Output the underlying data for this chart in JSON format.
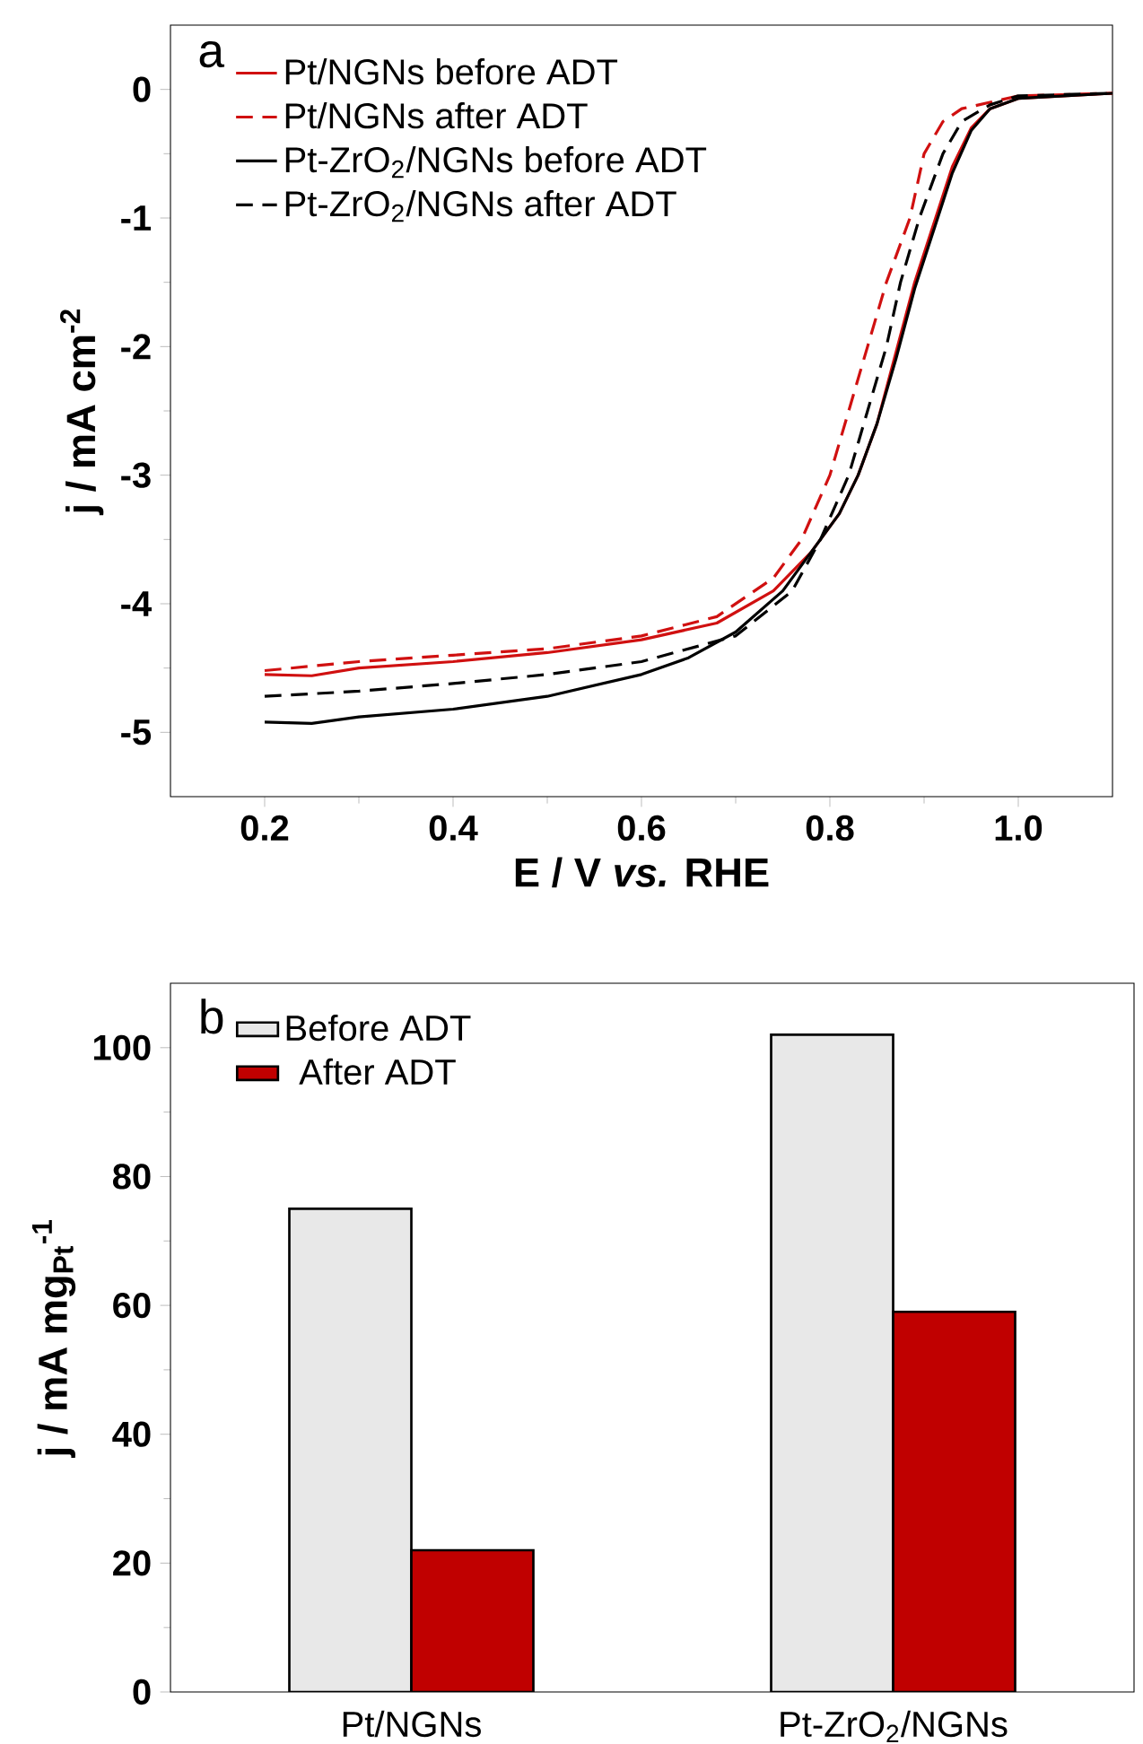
{
  "chart_data": [
    {
      "type": "line",
      "annotations": [
        "a"
      ],
      "xlabel": "E / V *vs.* RHE",
      "ylabel": "j / mA cm$^{-2}$",
      "xlim": [
        0.1,
        1.1
      ],
      "ylim": [
        -5.5,
        0.5
      ],
      "xticks": [
        0.2,
        0.4,
        0.6,
        0.8,
        {
          "value": 1.0,
          "label": "1.0"
        }
      ],
      "yticks": [
        -5,
        -4,
        -3,
        -2,
        -1,
        0
      ],
      "legend": "top left",
      "grid": false,
      "series": [
        {
          "name": "Pt/NGNs before ADT",
          "color": "#d01010",
          "line_style": "solid",
          "x": [
            0.2,
            0.25,
            0.3,
            0.4,
            0.5,
            0.6,
            0.68,
            0.74,
            0.78,
            0.81,
            0.83,
            0.85,
            0.87,
            0.89,
            0.91,
            0.93,
            0.95,
            0.97,
            1.0,
            1.1
          ],
          "values": [
            -4.55,
            -4.56,
            -4.5,
            -4.45,
            -4.38,
            -4.28,
            -4.15,
            -3.9,
            -3.6,
            -3.3,
            -3.0,
            -2.6,
            -2.05,
            -1.5,
            -1.05,
            -0.6,
            -0.3,
            -0.15,
            -0.07,
            -0.03
          ]
        },
        {
          "name": "Pt/NGNs after ADT",
          "color": "#d01010",
          "line_style": "dashed",
          "x": [
            0.2,
            0.3,
            0.4,
            0.5,
            0.6,
            0.68,
            0.74,
            0.77,
            0.8,
            0.82,
            0.84,
            0.86,
            0.885,
            0.9,
            0.92,
            0.94,
            0.97,
            1.0,
            1.1
          ],
          "values": [
            -4.52,
            -4.45,
            -4.4,
            -4.35,
            -4.25,
            -4.1,
            -3.8,
            -3.5,
            -3.0,
            -2.5,
            -2.0,
            -1.5,
            -1.0,
            -0.5,
            -0.25,
            -0.15,
            -0.1,
            -0.05,
            -0.03
          ]
        },
        {
          "name": "Pt-ZrO$_{2}$/NGNs before ADT",
          "color": "#000000",
          "line_style": "solid",
          "x": [
            0.2,
            0.25,
            0.3,
            0.4,
            0.5,
            0.6,
            0.65,
            0.7,
            0.75,
            0.78,
            0.81,
            0.83,
            0.85,
            0.87,
            0.89,
            0.91,
            0.93,
            0.95,
            0.97,
            1.0,
            1.1
          ],
          "values": [
            -4.92,
            -4.93,
            -4.88,
            -4.82,
            -4.72,
            -4.55,
            -4.42,
            -4.22,
            -3.9,
            -3.6,
            -3.3,
            -3.0,
            -2.6,
            -2.1,
            -1.55,
            -1.1,
            -0.65,
            -0.32,
            -0.15,
            -0.07,
            -0.03
          ]
        },
        {
          "name": "Pt-ZrO$_{2}$/NGNs after ADT",
          "color": "#000000",
          "line_style": "dashed",
          "x": [
            0.2,
            0.3,
            0.4,
            0.5,
            0.6,
            0.7,
            0.76,
            0.79,
            0.82,
            0.84,
            0.86,
            0.875,
            0.895,
            0.92,
            0.94,
            0.97,
            1.0,
            1.1
          ],
          "values": [
            -4.72,
            -4.68,
            -4.62,
            -4.55,
            -4.45,
            -4.25,
            -3.9,
            -3.5,
            -3.0,
            -2.5,
            -2.0,
            -1.5,
            -1.0,
            -0.5,
            -0.25,
            -0.12,
            -0.05,
            -0.03
          ]
        }
      ]
    },
    {
      "type": "bar",
      "annotations": [
        "b"
      ],
      "ylabel": "j / mA mg$_{Pt}$$^{-1}$",
      "categories": [
        "Pt/NGNs",
        "Pt-ZrO$_{2}$/NGNs"
      ],
      "ylim": [
        0,
        110
      ],
      "yticks": [
        0,
        20,
        40,
        60,
        80,
        100
      ],
      "legend": "top left",
      "grid": false,
      "series": [
        {
          "name": "Before ADT",
          "color": "#e8e8e8",
          "values": [
            75,
            102
          ]
        },
        {
          "name": "After ADT",
          "color": "#c00000",
          "values": [
            22,
            59
          ]
        }
      ]
    }
  ]
}
